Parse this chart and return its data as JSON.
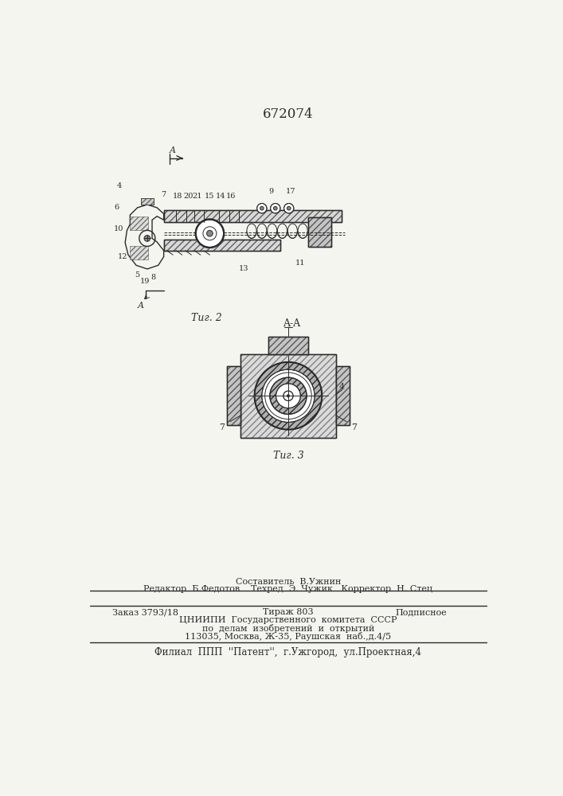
{
  "patent_number": "672074",
  "background_color": "#f5f5f0",
  "drawing_color": "#2a2a2a",
  "fig2_caption": "Τиг. 2",
  "fig3_caption": "Τиг. 3",
  "section_label": "A-A",
  "footer_line1": "Составитель  В.Ужнин",
  "footer_line2": "Редактор  Б.Федотов    Техред  Э. Чужик   Корректор  Н. Стец",
  "footer_line4": "ЦНИИПИ  Государственного  комитета  СССР",
  "footer_line5": "по  делам  изобретений  и  открытий",
  "footer_line6": "113035, Москва, Ж-35, Раушская  наб.,д.4/5",
  "footer_line7": "Филиал  ППП  ''Патент'',  г.Ужгород,  ул.Проектная,4"
}
